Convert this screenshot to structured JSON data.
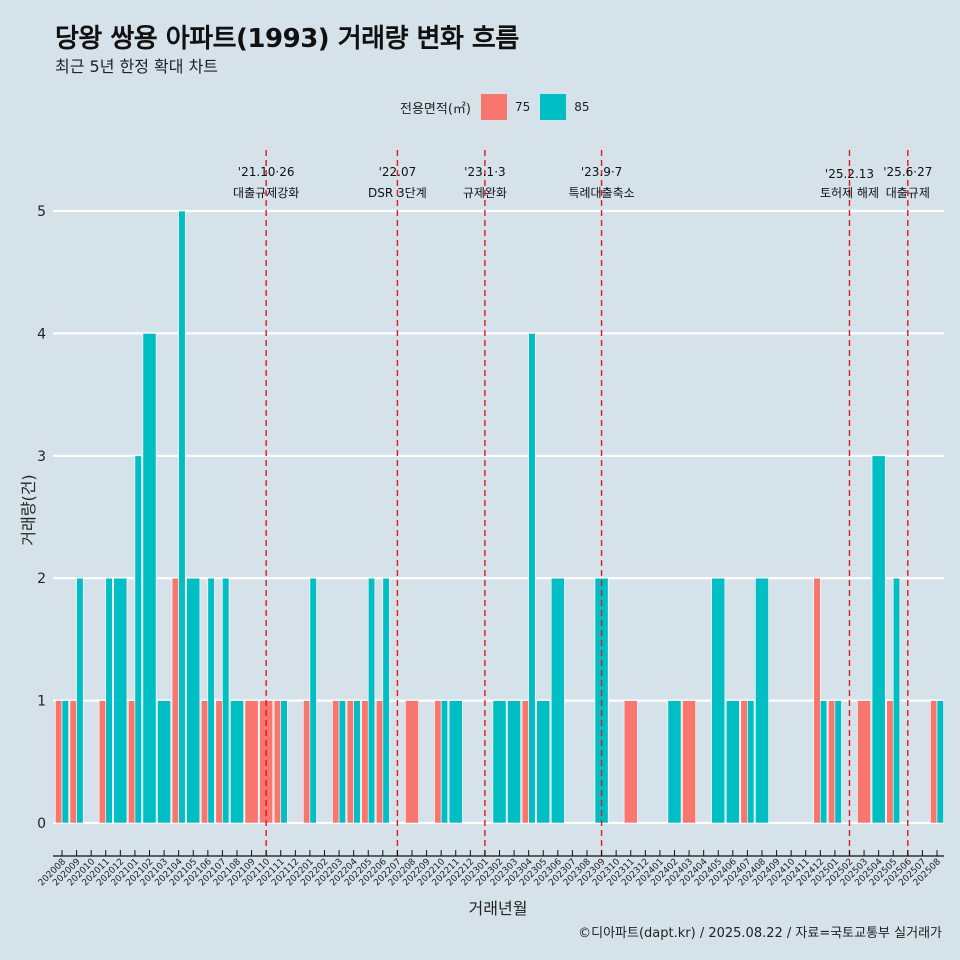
{
  "header": {
    "title": "당왕 쌍용 아파트(1993) 거래량 변화 흐름",
    "subtitle": "최근 5년 한정 확대 차트"
  },
  "legend": {
    "title": "전용면적(㎡)",
    "items": [
      {
        "label": "75",
        "color": "#f8766d"
      },
      {
        "label": "85",
        "color": "#00bfc4"
      }
    ]
  },
  "caption": "©디아파트(dapt.kr) / 2025.08.22 / 자료=국토교통부 실거래가",
  "chart_data": {
    "type": "bar",
    "title": "당왕 쌍용 아파트(1993) 거래량 변화 흐름",
    "subtitle": "최근 5년 한정 확대 차트",
    "xlabel": "거래년월",
    "ylabel": "거래량(건)",
    "ylim": [
      0,
      5
    ],
    "yticks": [
      "0",
      "1",
      "2",
      "3",
      "4",
      "5"
    ],
    "grid": true,
    "legend_position": "top",
    "categories": [
      "202008",
      "202009",
      "202010",
      "202011",
      "202012",
      "202101",
      "202102",
      "202103",
      "202104",
      "202105",
      "202106",
      "202107",
      "202108",
      "202109",
      "202110",
      "202111",
      "202112",
      "202201",
      "202202",
      "202203",
      "202204",
      "202205",
      "202206",
      "202207",
      "202208",
      "202209",
      "202210",
      "202211",
      "202212",
      "202301",
      "202302",
      "202303",
      "202304",
      "202305",
      "202306",
      "202307",
      "202308",
      "202309",
      "202310",
      "202311",
      "202312",
      "202401",
      "202402",
      "202403",
      "202404",
      "202405",
      "202406",
      "202407",
      "202408",
      "202409",
      "202410",
      "202411",
      "202412",
      "202501",
      "202502",
      "202503",
      "202504",
      "202505",
      "202506",
      "202507",
      "202508"
    ],
    "series": [
      {
        "name": "75",
        "color": "#f8766d",
        "values": [
          1,
          1,
          0,
          1,
          0,
          1,
          0,
          0,
          2,
          0,
          1,
          1,
          0,
          1,
          1,
          1,
          0,
          1,
          0,
          1,
          1,
          1,
          1,
          0,
          1,
          0,
          1,
          0,
          0,
          0,
          0,
          0,
          1,
          0,
          0,
          0,
          0,
          0,
          0,
          1,
          0,
          0,
          0,
          1,
          0,
          0,
          0,
          1,
          0,
          0,
          0,
          0,
          2,
          1,
          0,
          1,
          0,
          1,
          0,
          0,
          1
        ]
      },
      {
        "name": "85",
        "color": "#00bfc4",
        "values": [
          1,
          2,
          0,
          2,
          2,
          3,
          4,
          1,
          5,
          2,
          2,
          2,
          1,
          0,
          0,
          1,
          0,
          2,
          0,
          1,
          1,
          2,
          2,
          0,
          0,
          0,
          1,
          1,
          0,
          0,
          1,
          1,
          4,
          1,
          2,
          0,
          0,
          2,
          0,
          0,
          0,
          0,
          1,
          0,
          0,
          2,
          1,
          1,
          2,
          0,
          0,
          0,
          1,
          1,
          0,
          0,
          3,
          2,
          0,
          0,
          1
        ]
      }
    ],
    "annotations": [
      {
        "month": "202110",
        "date": "'21.10·26",
        "label": "대출규제강화"
      },
      {
        "month": "202207",
        "date": "'22.07",
        "label": "DSR 3단계"
      },
      {
        "month": "202301",
        "date": "'23.1·3",
        "label": "규제완화"
      },
      {
        "month": "202309",
        "date": "'23.9·7",
        "label": "특례대출축소"
      },
      {
        "month": "202502",
        "date": "'25.2.13",
        "label": "토허제 해제"
      },
      {
        "month": "202506",
        "date": "'25.6·27",
        "label": "대출규제"
      }
    ],
    "annotation_line_color": "#e8141c"
  }
}
